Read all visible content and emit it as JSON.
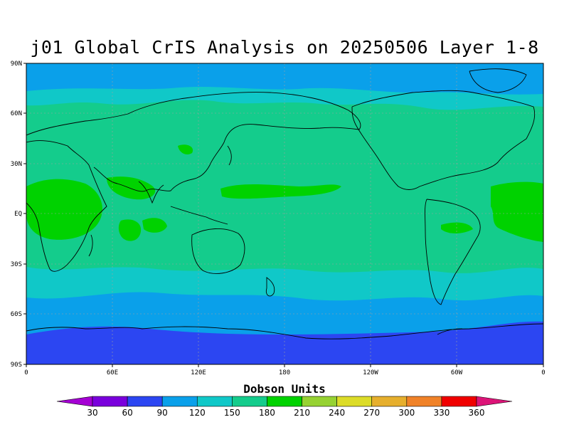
{
  "title": "j01 Global CrIS Analysis on 20250506 Layer 1-8",
  "colorbar_label": "Dobson Units",
  "lat_labels": [
    "90N",
    "60N",
    "30N",
    "EQ",
    "30S",
    "60S",
    "90S"
  ],
  "lon_labels": [
    "0",
    "60E",
    "120E",
    "180",
    "120W",
    "60W",
    "0"
  ],
  "colorbar": {
    "ticks": [
      "30",
      "60",
      "90",
      "120",
      "150",
      "180",
      "210",
      "240",
      "270",
      "300",
      "330",
      "360"
    ],
    "colors": [
      "#a500d4",
      "#7a00dc",
      "#2c46f2",
      "#0aa0ea",
      "#10c8c8",
      "#14cc8c",
      "#00d200",
      "#96d232",
      "#dcdc28",
      "#e6af2d",
      "#f08228",
      "#f00000",
      "#dc1478"
    ]
  },
  "regions": {
    "north_pole": "90-120",
    "north_mid_latitudes": "120-150",
    "subtropics_tropics": "150-180",
    "tropical_maxima": "180-210",
    "southern_mid_latitudes": "120-150",
    "southern_ocean": "90-120",
    "antarctica": "60-90"
  }
}
